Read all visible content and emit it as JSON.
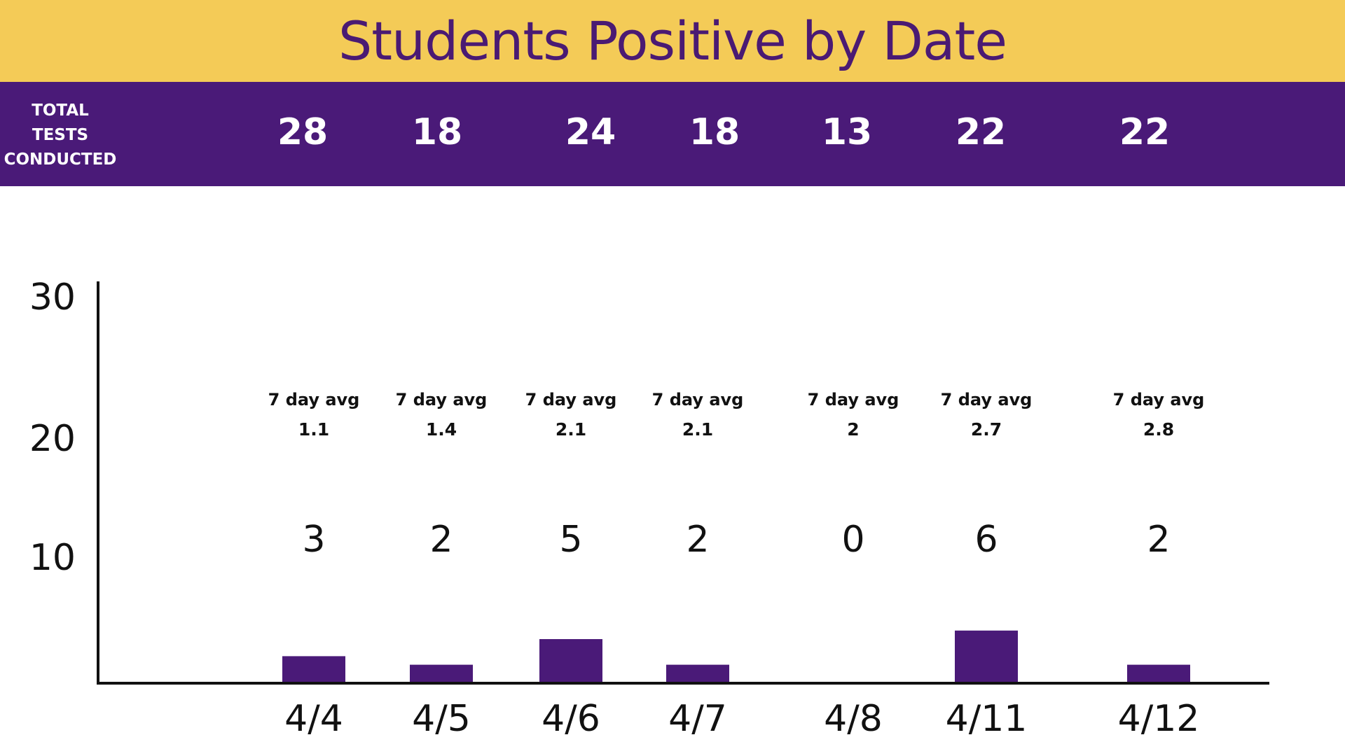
{
  "title": "Students Positive by Date",
  "tests_label": [
    "TOTAL",
    "TESTS",
    "CONDUCTED"
  ],
  "colors": {
    "title_bar": "#f4cb57",
    "title_text": "#4a1a73",
    "tests_bar": "#4a1a78",
    "bar_fill": "#4a1a78",
    "axis": "#111111"
  },
  "chart_data": {
    "type": "bar",
    "title": "Students Positive by Date",
    "categories": [
      "4/4",
      "4/5",
      "4/6",
      "4/7",
      "4/8",
      "4/11",
      "4/12"
    ],
    "values": [
      3,
      2,
      5,
      2,
      0,
      6,
      2
    ],
    "total_tests": [
      28,
      18,
      24,
      18,
      13,
      22,
      22
    ],
    "avg_label": "7 day avg",
    "seven_day_avg": [
      "1.1",
      "1.4",
      "2.1",
      "2.1",
      "2",
      "2.7",
      "2.8"
    ],
    "yticks": [
      10,
      20,
      30
    ],
    "ylim": [
      0,
      30
    ],
    "grid": false,
    "xlabel": "",
    "ylabel": ""
  }
}
